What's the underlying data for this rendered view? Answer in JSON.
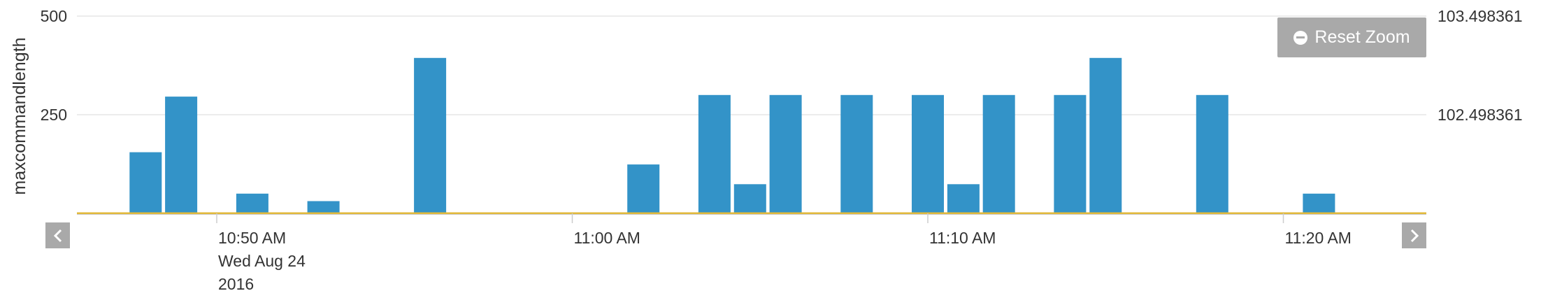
{
  "controls": {
    "reset_zoom_label": "Reset Zoom",
    "reset_icon": "minus-circle-icon",
    "prev_icon": "chevron-left-icon",
    "next_icon": "chevron-right-icon"
  },
  "colors": {
    "bar": "#3393c8",
    "baseline": "#e2b93b",
    "grid": "#e6e6e6",
    "button": "#a9a9a9"
  },
  "chart_data": {
    "type": "bar",
    "ylabel": "maxcommandlength",
    "ylim": [
      0,
      500
    ],
    "yticks": [
      "500",
      "250"
    ],
    "right_yticks": [
      "103.498361",
      "102.498361"
    ],
    "x_tick_labels": [
      {
        "time": "10:50",
        "lines": [
          "10:50 AM",
          "Wed Aug 24",
          "2016"
        ]
      },
      {
        "time": "11:00",
        "lines": [
          "11:00 AM"
        ]
      },
      {
        "time": "11:10",
        "lines": [
          "11:10 AM"
        ]
      },
      {
        "time": "11:20",
        "lines": [
          "11:20 AM"
        ]
      }
    ],
    "xlim": [
      "10:46",
      "11:24"
    ],
    "bin_minutes": 1,
    "series": [
      {
        "type": "bar",
        "points": [
          {
            "t": "10:48",
            "value": 155
          },
          {
            "t": "10:49",
            "value": 296
          },
          {
            "t": "10:51",
            "value": 50
          },
          {
            "t": "10:53",
            "value": 31
          },
          {
            "t": "10:56",
            "value": 394
          },
          {
            "t": "11:02",
            "value": 124
          },
          {
            "t": "11:04",
            "value": 300
          },
          {
            "t": "11:05",
            "value": 74
          },
          {
            "t": "11:06",
            "value": 300
          },
          {
            "t": "11:08",
            "value": 300
          },
          {
            "t": "11:10",
            "value": 300
          },
          {
            "t": "11:11",
            "value": 74
          },
          {
            "t": "11:12",
            "value": 300
          },
          {
            "t": "11:14",
            "value": 300
          },
          {
            "t": "11:15",
            "value": 394
          },
          {
            "t": "11:18",
            "value": 300
          },
          {
            "t": "11:21",
            "value": 50
          }
        ]
      },
      {
        "type": "line",
        "values": [
          0,
          0
        ]
      }
    ]
  }
}
